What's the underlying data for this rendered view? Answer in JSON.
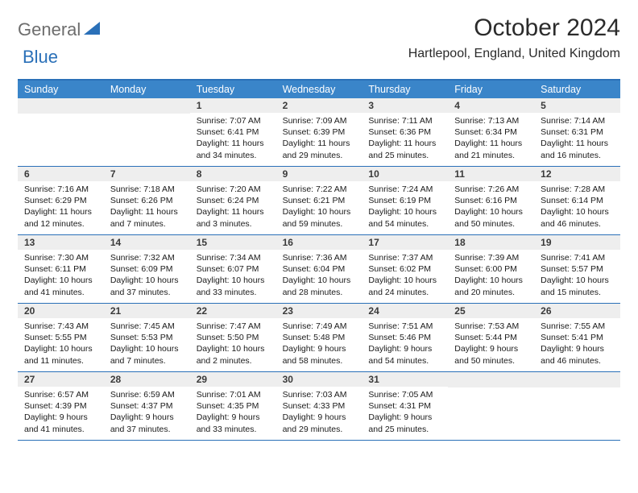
{
  "logo": {
    "text1": "General",
    "text2": "Blue"
  },
  "title": "October 2024",
  "location": "Hartlepool, England, United Kingdom",
  "colors": {
    "header_bg": "#3a85c9",
    "header_text": "#ffffff",
    "rule": "#2a70b8",
    "numrow_bg": "#eeeeee",
    "logo_gray": "#6d6d6d",
    "logo_blue": "#2a70b8"
  },
  "day_names": [
    "Sunday",
    "Monday",
    "Tuesday",
    "Wednesday",
    "Thursday",
    "Friday",
    "Saturday"
  ],
  "weeks": [
    [
      null,
      null,
      {
        "n": "1",
        "sr": "7:07 AM",
        "ss": "6:41 PM",
        "dl": "11 hours and 34 minutes."
      },
      {
        "n": "2",
        "sr": "7:09 AM",
        "ss": "6:39 PM",
        "dl": "11 hours and 29 minutes."
      },
      {
        "n": "3",
        "sr": "7:11 AM",
        "ss": "6:36 PM",
        "dl": "11 hours and 25 minutes."
      },
      {
        "n": "4",
        "sr": "7:13 AM",
        "ss": "6:34 PM",
        "dl": "11 hours and 21 minutes."
      },
      {
        "n": "5",
        "sr": "7:14 AM",
        "ss": "6:31 PM",
        "dl": "11 hours and 16 minutes."
      }
    ],
    [
      {
        "n": "6",
        "sr": "7:16 AM",
        "ss": "6:29 PM",
        "dl": "11 hours and 12 minutes."
      },
      {
        "n": "7",
        "sr": "7:18 AM",
        "ss": "6:26 PM",
        "dl": "11 hours and 7 minutes."
      },
      {
        "n": "8",
        "sr": "7:20 AM",
        "ss": "6:24 PM",
        "dl": "11 hours and 3 minutes."
      },
      {
        "n": "9",
        "sr": "7:22 AM",
        "ss": "6:21 PM",
        "dl": "10 hours and 59 minutes."
      },
      {
        "n": "10",
        "sr": "7:24 AM",
        "ss": "6:19 PM",
        "dl": "10 hours and 54 minutes."
      },
      {
        "n": "11",
        "sr": "7:26 AM",
        "ss": "6:16 PM",
        "dl": "10 hours and 50 minutes."
      },
      {
        "n": "12",
        "sr": "7:28 AM",
        "ss": "6:14 PM",
        "dl": "10 hours and 46 minutes."
      }
    ],
    [
      {
        "n": "13",
        "sr": "7:30 AM",
        "ss": "6:11 PM",
        "dl": "10 hours and 41 minutes."
      },
      {
        "n": "14",
        "sr": "7:32 AM",
        "ss": "6:09 PM",
        "dl": "10 hours and 37 minutes."
      },
      {
        "n": "15",
        "sr": "7:34 AM",
        "ss": "6:07 PM",
        "dl": "10 hours and 33 minutes."
      },
      {
        "n": "16",
        "sr": "7:36 AM",
        "ss": "6:04 PM",
        "dl": "10 hours and 28 minutes."
      },
      {
        "n": "17",
        "sr": "7:37 AM",
        "ss": "6:02 PM",
        "dl": "10 hours and 24 minutes."
      },
      {
        "n": "18",
        "sr": "7:39 AM",
        "ss": "6:00 PM",
        "dl": "10 hours and 20 minutes."
      },
      {
        "n": "19",
        "sr": "7:41 AM",
        "ss": "5:57 PM",
        "dl": "10 hours and 15 minutes."
      }
    ],
    [
      {
        "n": "20",
        "sr": "7:43 AM",
        "ss": "5:55 PM",
        "dl": "10 hours and 11 minutes."
      },
      {
        "n": "21",
        "sr": "7:45 AM",
        "ss": "5:53 PM",
        "dl": "10 hours and 7 minutes."
      },
      {
        "n": "22",
        "sr": "7:47 AM",
        "ss": "5:50 PM",
        "dl": "10 hours and 2 minutes."
      },
      {
        "n": "23",
        "sr": "7:49 AM",
        "ss": "5:48 PM",
        "dl": "9 hours and 58 minutes."
      },
      {
        "n": "24",
        "sr": "7:51 AM",
        "ss": "5:46 PM",
        "dl": "9 hours and 54 minutes."
      },
      {
        "n": "25",
        "sr": "7:53 AM",
        "ss": "5:44 PM",
        "dl": "9 hours and 50 minutes."
      },
      {
        "n": "26",
        "sr": "7:55 AM",
        "ss": "5:41 PM",
        "dl": "9 hours and 46 minutes."
      }
    ],
    [
      {
        "n": "27",
        "sr": "6:57 AM",
        "ss": "4:39 PM",
        "dl": "9 hours and 41 minutes."
      },
      {
        "n": "28",
        "sr": "6:59 AM",
        "ss": "4:37 PM",
        "dl": "9 hours and 37 minutes."
      },
      {
        "n": "29",
        "sr": "7:01 AM",
        "ss": "4:35 PM",
        "dl": "9 hours and 33 minutes."
      },
      {
        "n": "30",
        "sr": "7:03 AM",
        "ss": "4:33 PM",
        "dl": "9 hours and 29 minutes."
      },
      {
        "n": "31",
        "sr": "7:05 AM",
        "ss": "4:31 PM",
        "dl": "9 hours and 25 minutes."
      },
      null,
      null
    ]
  ],
  "labels": {
    "sunrise": "Sunrise:",
    "sunset": "Sunset:",
    "daylight": "Daylight:"
  }
}
